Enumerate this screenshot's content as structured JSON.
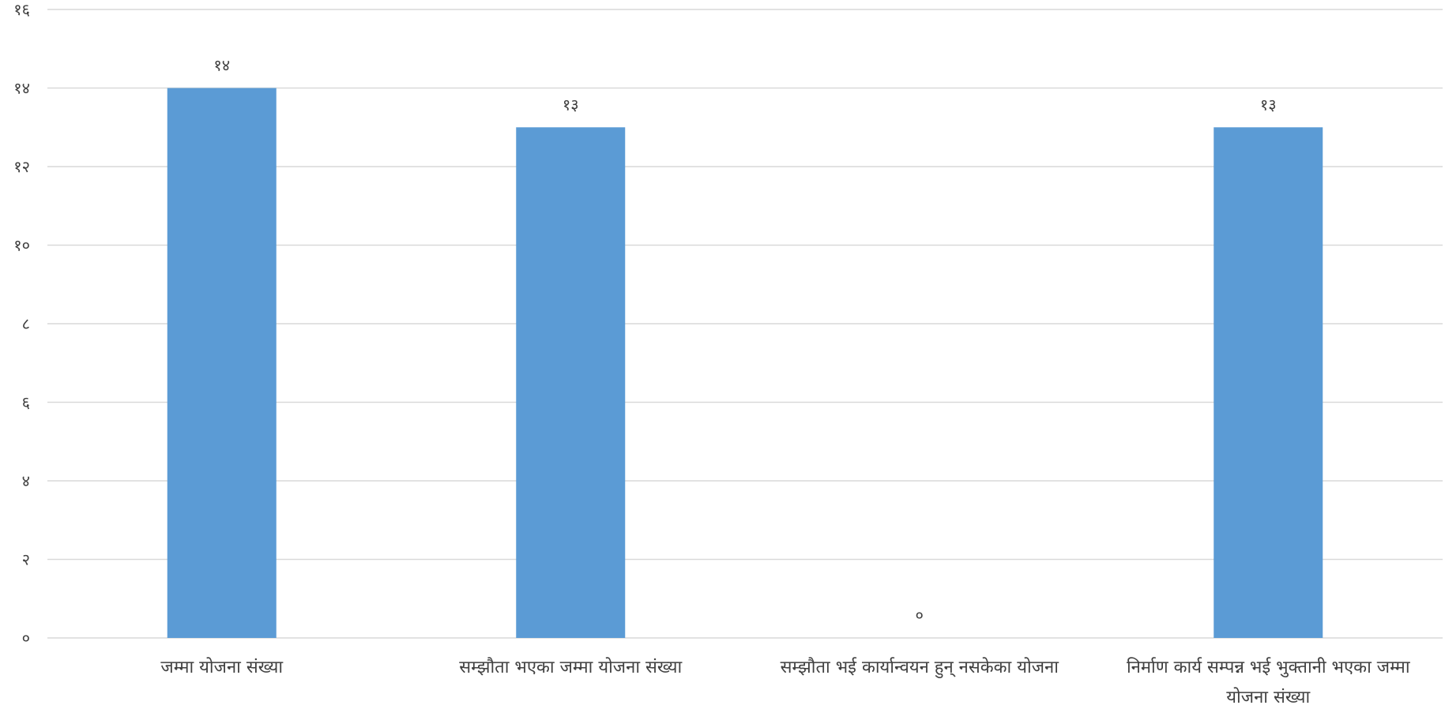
{
  "chart_data": {
    "type": "bar",
    "title": "",
    "xlabel": "",
    "ylabel": "",
    "ylim": [
      0,
      16
    ],
    "y_ticks": [
      {
        "value": 0,
        "label": "०"
      },
      {
        "value": 2,
        "label": "२"
      },
      {
        "value": 4,
        "label": "४"
      },
      {
        "value": 6,
        "label": "६"
      },
      {
        "value": 8,
        "label": "८"
      },
      {
        "value": 10,
        "label": "१०"
      },
      {
        "value": 12,
        "label": "१२"
      },
      {
        "value": 14,
        "label": "१४"
      },
      {
        "value": 16,
        "label": "१६"
      }
    ],
    "grid": true,
    "legend": "none",
    "bar_color": "#5B9BD5",
    "categories": [
      [
        "जम्मा योजना संख्या"
      ],
      [
        "सम्झौता भएका जम्मा योजना संख्या"
      ],
      [
        "सम्झौता भई कार्यान्वयन हुन् नसकेका योजना"
      ],
      [
        "निर्माण कार्य सम्पन्न भई भुक्तानी भएका जम्मा",
        "योजना संख्या"
      ]
    ],
    "values": [
      14,
      13,
      0,
      13
    ],
    "data_labels": [
      "१४",
      "१३",
      "०",
      "१३"
    ]
  }
}
